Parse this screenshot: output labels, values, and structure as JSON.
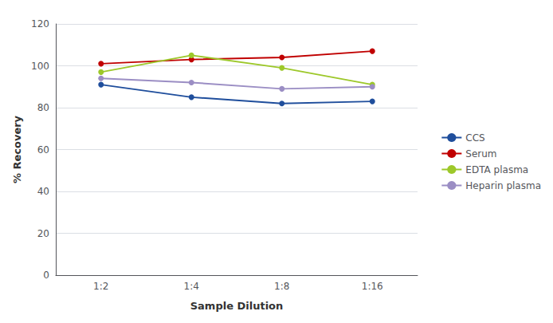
{
  "chart_data": {
    "type": "line",
    "xlabel": "Sample Dilution",
    "ylabel": "% Recovery",
    "categories": [
      "1:2",
      "1:4",
      "1:8",
      "1:16"
    ],
    "series": [
      {
        "name": "CCS",
        "color": "#1f4e9c",
        "values": [
          91,
          85,
          82,
          83
        ]
      },
      {
        "name": "Serum",
        "color": "#c00000",
        "values": [
          101,
          103,
          104,
          107
        ]
      },
      {
        "name": "EDTA plasma",
        "color": "#9dc82a",
        "values": [
          97,
          105,
          99,
          91
        ]
      },
      {
        "name": "Heparin plasma",
        "color": "#9b8ec4",
        "values": [
          94,
          92,
          89,
          90
        ]
      }
    ],
    "ylim": [
      0,
      120
    ],
    "yticks": [
      0,
      20,
      40,
      60,
      80,
      100,
      120
    ],
    "grid": true,
    "legend": "right",
    "marker": "circle"
  }
}
